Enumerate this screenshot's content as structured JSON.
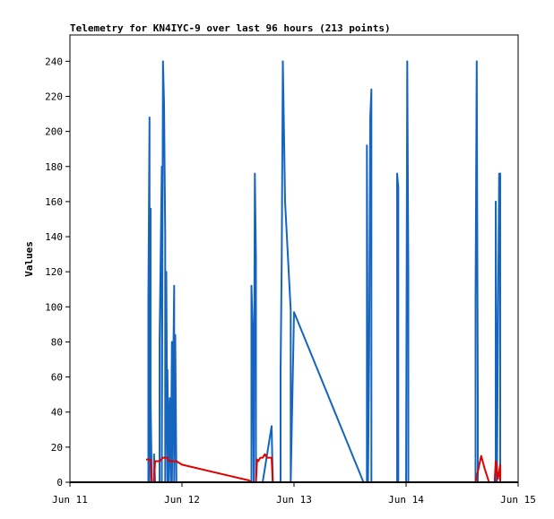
{
  "chart_data": {
    "type": "line",
    "title": "Telemetry for KN4IYC-9 over last 96 hours (213 points)",
    "ylabel": "Values",
    "xlabel": "",
    "xlim": [
      0,
      4
    ],
    "ylim": [
      0,
      255
    ],
    "x_ticks": [
      {
        "value": 0,
        "label": "Jun 11"
      },
      {
        "value": 1,
        "label": "Jun 12"
      },
      {
        "value": 2,
        "label": "Jun 13"
      },
      {
        "value": 3,
        "label": "Jun 14"
      },
      {
        "value": 4,
        "label": "Jun 15"
      }
    ],
    "y_ticks": [
      0,
      20,
      40,
      60,
      80,
      100,
      120,
      140,
      160,
      180,
      200,
      220,
      240
    ],
    "grid": false,
    "series": [
      {
        "color": "#1565c0",
        "points": [
          [
            0.7,
            0
          ],
          [
            0.7,
            104
          ],
          [
            0.71,
            208
          ],
          [
            0.71,
            0
          ],
          [
            0.72,
            156
          ],
          [
            0.72,
            48
          ],
          [
            0.73,
            0
          ],
          [
            0.75,
            0
          ],
          [
            0.75,
            16
          ],
          [
            0.76,
            0
          ],
          [
            0.8,
            0
          ],
          [
            0.8,
            80
          ],
          [
            0.82,
            180
          ],
          [
            0.82,
            0
          ],
          [
            0.83,
            240
          ],
          [
            0.84,
            216
          ],
          [
            0.85,
            140
          ],
          [
            0.85,
            0
          ],
          [
            0.86,
            120
          ],
          [
            0.87,
            0
          ],
          [
            0.87,
            64
          ],
          [
            0.88,
            0
          ],
          [
            0.89,
            48
          ],
          [
            0.9,
            0
          ],
          [
            0.91,
            80
          ],
          [
            0.91,
            0
          ],
          [
            0.93,
            112
          ],
          [
            0.93,
            0
          ],
          [
            0.94,
            84
          ],
          [
            0.95,
            0
          ],
          [
            1.62,
            0
          ],
          [
            1.62,
            112
          ],
          [
            1.63,
            88
          ],
          [
            1.64,
            0
          ],
          [
            1.65,
            176
          ],
          [
            1.66,
            128
          ],
          [
            1.66,
            0
          ],
          [
            1.72,
            0
          ],
          [
            1.8,
            32
          ],
          [
            1.81,
            0
          ],
          [
            1.88,
            0
          ],
          [
            1.88,
            64
          ],
          [
            1.89,
            128
          ],
          [
            1.9,
            240
          ],
          [
            1.91,
            200
          ],
          [
            1.92,
            160
          ],
          [
            1.97,
            98
          ],
          [
            1.97,
            0
          ],
          [
            2.0,
            97
          ],
          [
            2.62,
            0
          ],
          [
            2.65,
            0
          ],
          [
            2.65,
            192
          ],
          [
            2.66,
            0
          ],
          [
            2.67,
            72
          ],
          [
            2.68,
            208
          ],
          [
            2.69,
            224
          ],
          [
            2.69,
            0
          ],
          [
            2.92,
            0
          ],
          [
            2.92,
            176
          ],
          [
            2.93,
            168
          ],
          [
            2.93,
            0
          ],
          [
            3.0,
            0
          ],
          [
            3.01,
            240
          ],
          [
            3.02,
            120
          ],
          [
            3.02,
            0
          ],
          [
            3.62,
            0
          ],
          [
            3.62,
            104
          ],
          [
            3.63,
            240
          ],
          [
            3.64,
            48
          ],
          [
            3.64,
            0
          ],
          [
            3.8,
            0
          ],
          [
            3.8,
            160
          ],
          [
            3.81,
            0
          ],
          [
            3.83,
            176
          ],
          [
            3.84,
            176
          ],
          [
            3.84,
            0
          ]
        ]
      },
      {
        "color": "#e00000",
        "points": [
          [
            0.68,
            13
          ],
          [
            0.72,
            13
          ],
          [
            0.73,
            0
          ],
          [
            0.75,
            0
          ],
          [
            0.76,
            12
          ],
          [
            0.8,
            12
          ],
          [
            0.83,
            14
          ],
          [
            0.87,
            14
          ],
          [
            0.88,
            12
          ],
          [
            0.95,
            12
          ],
          [
            1.0,
            10
          ],
          [
            1.6,
            1
          ],
          [
            1.62,
            0
          ],
          [
            1.66,
            0
          ],
          [
            1.67,
            13
          ],
          [
            1.68,
            12
          ],
          [
            1.7,
            14
          ],
          [
            1.72,
            14
          ],
          [
            1.74,
            16
          ],
          [
            1.76,
            14
          ],
          [
            1.8,
            14
          ],
          [
            1.81,
            0
          ],
          [
            3.62,
            0
          ],
          [
            3.67,
            15
          ],
          [
            3.7,
            8
          ],
          [
            3.74,
            0
          ],
          [
            3.79,
            0
          ],
          [
            3.8,
            12
          ],
          [
            3.82,
            2
          ],
          [
            3.84,
            10
          ],
          [
            3.84,
            0
          ]
        ]
      },
      {
        "color": "#000000",
        "points": [
          [
            0.0,
            0
          ],
          [
            4.0,
            0
          ]
        ]
      }
    ]
  }
}
